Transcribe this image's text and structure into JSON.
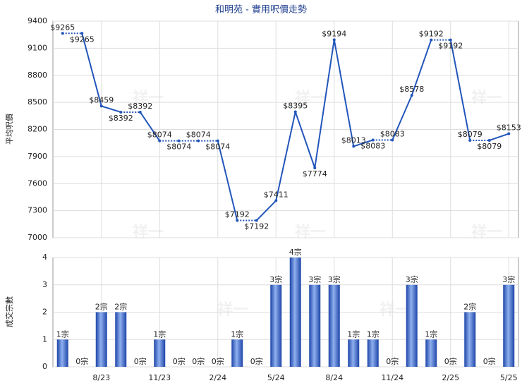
{
  "chart_data": [
    {
      "type": "line",
      "title": "和明苑 - 實用呎價走勢",
      "y_label": "平均呎價",
      "watermark": "祥一",
      "categories": [
        null,
        null,
        "8/23",
        null,
        null,
        "11/23",
        null,
        null,
        "2/24",
        null,
        null,
        "5/24",
        null,
        null,
        "8/24",
        null,
        null,
        "11/24",
        null,
        null,
        "2/25",
        null,
        null,
        "5/25"
      ],
      "series": [
        {
          "name": "平均呎價",
          "color": "#2255bb",
          "values": [
            9265,
            9265,
            8459,
            8392,
            8392,
            8074,
            8074,
            8074,
            8074,
            7192,
            7192,
            7411,
            8395,
            7774,
            9194,
            8013,
            8083,
            8083,
            8578,
            9192,
            9192,
            8079,
            8079,
            8153
          ],
          "value_labels": [
            "$9265",
            "$9265",
            "$8459",
            "$8392",
            "$8392",
            "$8074",
            "$8074",
            "$8074",
            "$8074",
            "$7192",
            "$7192",
            "$7411",
            "$8395",
            "$7774",
            "$9194",
            "$8013",
            "$8083",
            "$8083",
            "$8578",
            "$9192",
            "$9192",
            "$8079",
            "$8079",
            "$8153"
          ]
        }
      ],
      "ylim": [
        7000,
        9400
      ],
      "yticks": [
        7000,
        7300,
        7600,
        7900,
        8200,
        8500,
        8800,
        9100,
        9400
      ],
      "grid": true
    },
    {
      "type": "bar",
      "y_label": "成交宗數",
      "categories": [
        null,
        null,
        "8/23",
        null,
        null,
        "11/23",
        null,
        null,
        "2/24",
        null,
        null,
        "5/24",
        null,
        null,
        "8/24",
        null,
        null,
        "11/24",
        null,
        null,
        "2/25",
        null,
        null,
        "5/25"
      ],
      "series": [
        {
          "name": "成交宗數",
          "color": "#2f5fc4",
          "values": [
            1,
            0,
            2,
            2,
            0,
            1,
            0,
            0,
            0,
            1,
            0,
            3,
            4,
            3,
            3,
            1,
            1,
            0,
            3,
            1,
            0,
            2,
            0,
            3
          ],
          "value_labels": [
            "1宗",
            "0宗",
            "2宗",
            "2宗",
            "0宗",
            "1宗",
            "0宗",
            "0宗",
            "0宗",
            "1宗",
            "0宗",
            "3宗",
            "4宗",
            "3宗",
            "3宗",
            "1宗",
            "1宗",
            "0宗",
            "3宗",
            "1宗",
            "0宗",
            "2宗",
            "0宗",
            "3宗"
          ]
        }
      ],
      "ylim": [
        0,
        4
      ],
      "yticks": [
        0,
        1,
        2,
        3,
        4
      ],
      "grid": true
    }
  ]
}
